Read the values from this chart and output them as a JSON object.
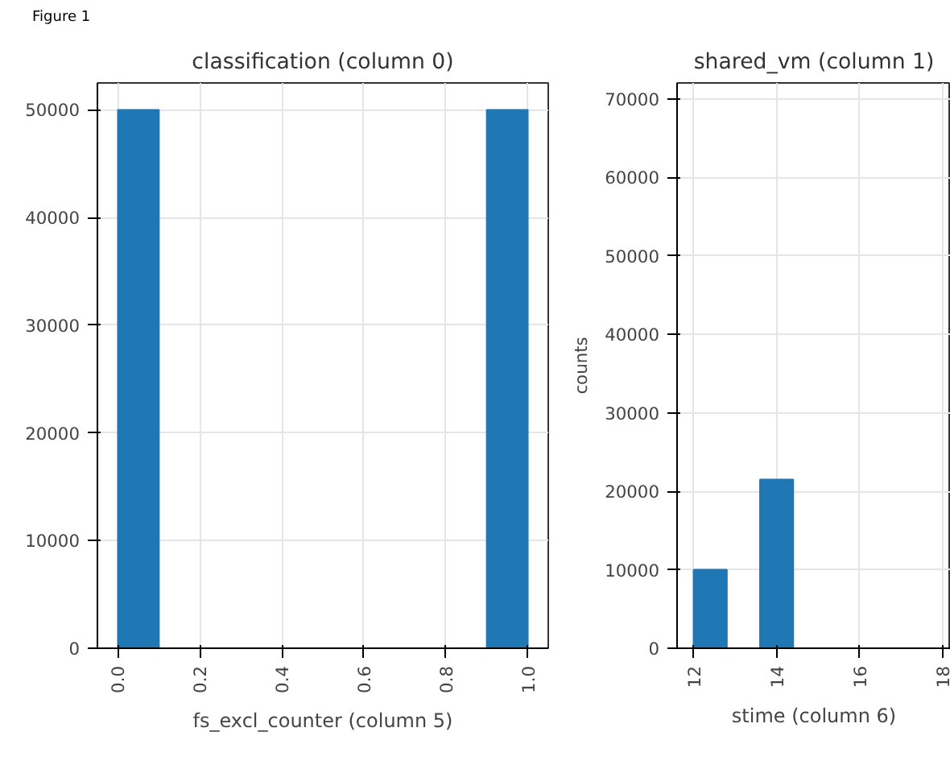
{
  "chart_data": [
    {
      "type": "histogram",
      "title": "classification (column 0)",
      "annotations": [
        "Figure 1",
        "fs_excl_counter (column 5)"
      ],
      "bins": [
        0,
        0.1,
        0.2,
        0.3,
        0.4,
        0.5,
        0.6,
        0.7,
        0.8,
        0.9,
        1.0
      ],
      "values": [
        50000,
        0,
        0,
        0,
        0,
        0,
        0,
        0,
        0,
        50000
      ],
      "color": "#1f77b4",
      "xlim": [
        -0.05,
        1.05
      ],
      "xticks": [
        {
          "value": 0,
          "label": "0.0"
        },
        {
          "value": 0.2,
          "label": "0.2"
        },
        {
          "value": 0.4,
          "label": "0.4"
        },
        {
          "value": 0.6,
          "label": "0.6"
        },
        {
          "value": 0.8,
          "label": "0.8"
        },
        {
          "value": 1.0,
          "label": "1.0"
        }
      ],
      "ylim": [
        0,
        52500
      ],
      "yticks": [
        0,
        10000,
        20000,
        30000,
        40000,
        50000
      ],
      "grid": true
    },
    {
      "type": "histogram",
      "title": "shared_vm (column 1)",
      "ylabel": "counts",
      "annotations": [
        "stime (column 6)"
      ],
      "bins": [
        12,
        12.8,
        13.6,
        14.4,
        15.2,
        16.0,
        16.8,
        17.6
      ],
      "values": [
        10000,
        0,
        21500,
        0,
        0,
        0,
        0
      ],
      "color": "#1f77b4",
      "xlim": [
        11.6,
        18.2
      ],
      "xticks": [
        12,
        14,
        16,
        18
      ],
      "ylim": [
        0,
        72000
      ],
      "yticks": [
        0,
        10000,
        20000,
        30000,
        40000,
        50000,
        60000,
        70000
      ],
      "grid": true
    }
  ]
}
